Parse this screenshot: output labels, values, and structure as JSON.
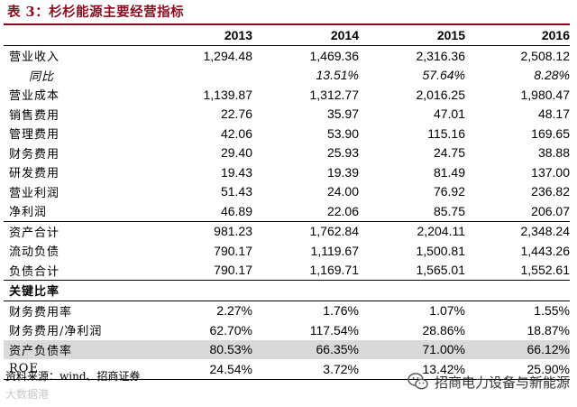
{
  "title": "表 3：杉杉能源主要经营指标",
  "columns": [
    "",
    "2013",
    "2014",
    "2015",
    "2016"
  ],
  "rows": [
    {
      "label": "营业收入",
      "values": [
        "1,294.48",
        "1,469.36",
        "2,316.36",
        "2,508.12"
      ]
    },
    {
      "label": "同比",
      "values": [
        "",
        "13.51%",
        "57.64%",
        "8.28%"
      ]
    },
    {
      "label": "营业成本",
      "values": [
        "1,139.87",
        "1,312.77",
        "2,016.25",
        "1,980.47"
      ]
    },
    {
      "label": "销售费用",
      "values": [
        "22.76",
        "35.97",
        "47.01",
        "48.17"
      ]
    },
    {
      "label": "管理费用",
      "values": [
        "42.06",
        "53.90",
        "115.16",
        "169.65"
      ]
    },
    {
      "label": "财务费用",
      "values": [
        "29.40",
        "25.93",
        "24.75",
        "38.88"
      ]
    },
    {
      "label": "研发费用",
      "values": [
        "19.43",
        "19.39",
        "81.49",
        "137.00"
      ]
    },
    {
      "label": "营业利润",
      "values": [
        "51.43",
        "24.00",
        "76.92",
        "236.82"
      ]
    },
    {
      "label": "净利润",
      "values": [
        "46.89",
        "22.06",
        "85.75",
        "206.07"
      ]
    },
    {
      "label": "资产合计",
      "values": [
        "981.23",
        "1,762.84",
        "2,204.11",
        "2,348.24"
      ]
    },
    {
      "label": "流动负债",
      "values": [
        "790.17",
        "1,119.67",
        "1,500.81",
        "1,443.26"
      ]
    },
    {
      "label": "负债合计",
      "values": [
        "790.17",
        "1,169.71",
        "1,565.01",
        "1,552.61"
      ]
    },
    {
      "label": "关键比率",
      "values": [
        "",
        "",
        "",
        ""
      ]
    },
    {
      "label": "财务费用率",
      "values": [
        "2.27%",
        "1.76%",
        "1.07%",
        "1.55%"
      ]
    },
    {
      "label": "财务费用/净利润",
      "values": [
        "62.70%",
        "117.54%",
        "28.86%",
        "18.87%"
      ]
    },
    {
      "label": "资产负债率",
      "values": [
        "80.53%",
        "66.35%",
        "71.00%",
        "66.12%"
      ]
    },
    {
      "label": "ROE",
      "values": [
        "24.54%",
        "3.72%",
        "13.42%",
        "25.90%"
      ]
    }
  ],
  "source": "资料来源：wind、招商证券",
  "watermark": "大数据港",
  "brand": {
    "icon": "wechat-icon",
    "text": "招商电力设备与新能源"
  }
}
